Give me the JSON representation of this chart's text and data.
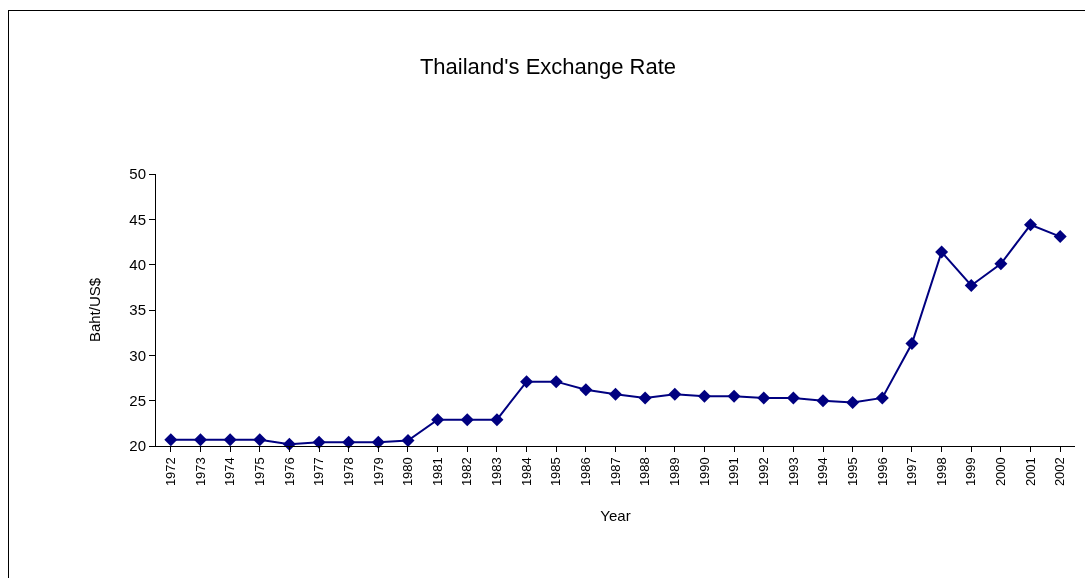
{
  "chart_data": {
    "type": "line",
    "title": "Thailand's Exchange Rate",
    "xlabel": "Year",
    "ylabel": "Baht/US$",
    "categories": [
      "1972",
      "1973",
      "1974",
      "1975",
      "1976",
      "1977",
      "1978",
      "1979",
      "1980",
      "1981",
      "1982",
      "1983",
      "1984",
      "1985",
      "1986",
      "1987",
      "1988",
      "1989",
      "1990",
      "1991",
      "1992",
      "1993",
      "1994",
      "1995",
      "1996",
      "1997",
      "1998",
      "1999",
      "2000",
      "2001",
      "2002"
    ],
    "series": [
      {
        "color": "#000080",
        "values": [
          20.7,
          20.7,
          20.7,
          20.7,
          20.2,
          20.4,
          20.4,
          20.4,
          20.6,
          22.9,
          22.9,
          22.9,
          27.1,
          27.1,
          26.2,
          25.7,
          25.3,
          25.7,
          25.5,
          25.5,
          25.3,
          25.3,
          25.0,
          24.8,
          25.3,
          31.3,
          41.4,
          37.7,
          40.1,
          44.4,
          43.1
        ]
      }
    ],
    "ylim": [
      20,
      50
    ],
    "yticks": [
      20,
      25,
      30,
      35,
      40,
      45,
      50
    ],
    "grid": false,
    "marker": "diamond",
    "line_style": "solid"
  }
}
